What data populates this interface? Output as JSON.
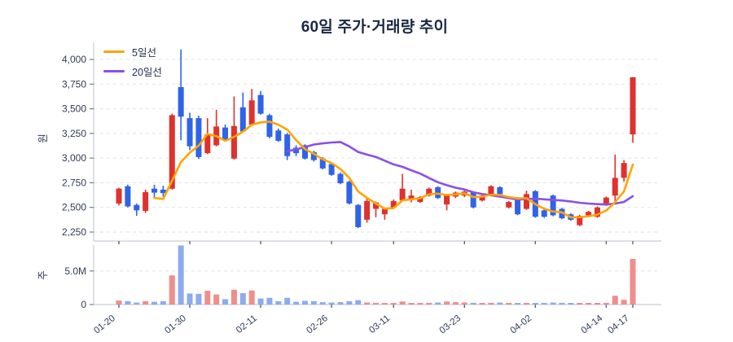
{
  "title": "60일 주가·거래량 추이",
  "legend": {
    "ma5_label": "5일선",
    "ma20_label": "20일선"
  },
  "price_axis": {
    "label": "원",
    "ticks": [
      {
        "label": "4,000",
        "value": 4000
      },
      {
        "label": "3,750",
        "value": 3750
      },
      {
        "label": "3,500",
        "value": 3500
      },
      {
        "label": "3,250",
        "value": 3250
      },
      {
        "label": "3,000",
        "value": 3000
      },
      {
        "label": "2,750",
        "value": 2750
      },
      {
        "label": "2,500",
        "value": 2500
      },
      {
        "label": "2,250",
        "value": 2250
      }
    ]
  },
  "volume_axis": {
    "label": "주",
    "ticks": [
      {
        "label": "5.0M",
        "value": 5
      },
      {
        "label": "0",
        "value": 0
      }
    ]
  },
  "x_axis": {
    "ticks": [
      {
        "label": "01-20",
        "index": 0
      },
      {
        "label": "01-30",
        "index": 8
      },
      {
        "label": "02-11",
        "index": 16
      },
      {
        "label": "02-26",
        "index": 24
      },
      {
        "label": "03-11",
        "index": 31
      },
      {
        "label": "03-23",
        "index": 39
      },
      {
        "label": "04-02",
        "index": 47
      },
      {
        "label": "04-14",
        "index": 55
      },
      {
        "label": "04-17",
        "index": 58
      }
    ]
  },
  "colors": {
    "up": "#df312d",
    "down": "#2f63e8",
    "vol_up": "#ef8e8c",
    "vol_down": "#8dabf0",
    "ma5": "#ffa400",
    "ma20": "#8a4fe8",
    "grid": "#e3e3e6",
    "axis_line": "#c9cdd6",
    "tick_mark": "#5b6579",
    "tick_text": "#2e3a58",
    "axis_label_text": "#2e3a58"
  },
  "chart_data": {
    "type": "candlestick",
    "title": "60일 주가·거래량 추이",
    "price_unit": "원",
    "volume_unit": "주",
    "volume_in": "millions",
    "price_range": [
      2250,
      4000
    ],
    "volume_range": [
      0,
      5
    ],
    "series_names": [
      "5일선",
      "20일선"
    ],
    "ma_windows": {
      "ma5": 5,
      "ma20": 20
    },
    "tick_dates": [
      "01-20",
      "01-30",
      "02-11",
      "02-26",
      "03-11",
      "03-23",
      "04-02",
      "04-14",
      "04-17"
    ],
    "tick_candle_indices": [
      0,
      8,
      16,
      24,
      31,
      39,
      47,
      55,
      58
    ],
    "candles_format": [
      "open",
      "high",
      "low",
      "close",
      "volume_M"
    ],
    "candles": [
      [
        2540,
        2700,
        2520,
        2690,
        0.6
      ],
      [
        2715,
        2730,
        2500,
        2510,
        0.5
      ],
      [
        2525,
        2540,
        2415,
        2470,
        0.3
      ],
      [
        2465,
        2680,
        2445,
        2655,
        0.5
      ],
      [
        2690,
        2730,
        2600,
        2650,
        0.4
      ],
      [
        2680,
        2720,
        2610,
        2645,
        0.5
      ],
      [
        2690,
        3450,
        2680,
        3435,
        4.35
      ],
      [
        3720,
        4100,
        3180,
        3420,
        8.8
      ],
      [
        3405,
        3460,
        3080,
        3120,
        1.65
      ],
      [
        3405,
        3430,
        2990,
        3010,
        1.6
      ],
      [
        3050,
        3405,
        3040,
        3240,
        2.05
      ],
      [
        3130,
        3490,
        3120,
        3320,
        1.5
      ],
      [
        3310,
        3340,
        3170,
        3185,
        0.8
      ],
      [
        2995,
        3625,
        2985,
        3325,
        2.2
      ],
      [
        3515,
        3665,
        3260,
        3270,
        1.7
      ],
      [
        3340,
        3700,
        3330,
        3585,
        2.1
      ],
      [
        3640,
        3680,
        3440,
        3450,
        0.9
      ],
      [
        3435,
        3450,
        3200,
        3215,
        1.0
      ],
      [
        3280,
        3300,
        3165,
        3175,
        0.5
      ],
      [
        3240,
        3255,
        2980,
        3020,
        1.0
      ],
      [
        3105,
        3130,
        3020,
        3050,
        0.4
      ],
      [
        3130,
        3140,
        2985,
        2995,
        0.55
      ],
      [
        3060,
        3075,
        2965,
        2980,
        0.5
      ],
      [
        2995,
        3010,
        2885,
        2895,
        0.35
      ],
      [
        2940,
        2950,
        2820,
        2830,
        0.3
      ],
      [
        2840,
        2855,
        2735,
        2745,
        0.35
      ],
      [
        2760,
        2770,
        2530,
        2540,
        0.5
      ],
      [
        2525,
        2535,
        2290,
        2300,
        0.65
      ],
      [
        2375,
        2595,
        2345,
        2565,
        0.3
      ],
      [
        2485,
        2560,
        2400,
        2550,
        0.25
      ],
      [
        2430,
        2500,
        2375,
        2485,
        0.2
      ],
      [
        2500,
        2580,
        2490,
        2565,
        0.25
      ],
      [
        2570,
        2840,
        2560,
        2690,
        0.45
      ],
      [
        2580,
        2680,
        2550,
        2620,
        0.15
      ],
      [
        2555,
        2615,
        2545,
        2605,
        0.2
      ],
      [
        2620,
        2700,
        2610,
        2690,
        0.25
      ],
      [
        2705,
        2715,
        2585,
        2595,
        0.3
      ],
      [
        2530,
        2635,
        2470,
        2620,
        0.45
      ],
      [
        2610,
        2660,
        2595,
        2650,
        0.35
      ],
      [
        2620,
        2670,
        2605,
        2660,
        0.3
      ],
      [
        2650,
        2660,
        2490,
        2500,
        0.25
      ],
      [
        2570,
        2630,
        2560,
        2620,
        0.2
      ],
      [
        2635,
        2725,
        2625,
        2715,
        0.25
      ],
      [
        2705,
        2715,
        2625,
        2635,
        0.3
      ],
      [
        2500,
        2565,
        2490,
        2555,
        0.2
      ],
      [
        2595,
        2605,
        2420,
        2430,
        0.2
      ],
      [
        2485,
        2670,
        2475,
        2635,
        0.15
      ],
      [
        2665,
        2675,
        2395,
        2405,
        0.2
      ],
      [
        2470,
        2480,
        2395,
        2405,
        0.2
      ],
      [
        2620,
        2630,
        2410,
        2420,
        0.3
      ],
      [
        2485,
        2495,
        2380,
        2390,
        0.25
      ],
      [
        2430,
        2440,
        2365,
        2375,
        0.15
      ],
      [
        2320,
        2425,
        2310,
        2415,
        0.2
      ],
      [
        2420,
        2465,
        2410,
        2455,
        0.2
      ],
      [
        2405,
        2510,
        2395,
        2500,
        0.2
      ],
      [
        2525,
        2610,
        2515,
        2600,
        0.25
      ],
      [
        2620,
        3035,
        2565,
        2800,
        1.3
      ],
      [
        2800,
        2980,
        2760,
        2950,
        0.7
      ],
      [
        3240,
        3820,
        3155,
        3820,
        6.8
      ]
    ]
  }
}
